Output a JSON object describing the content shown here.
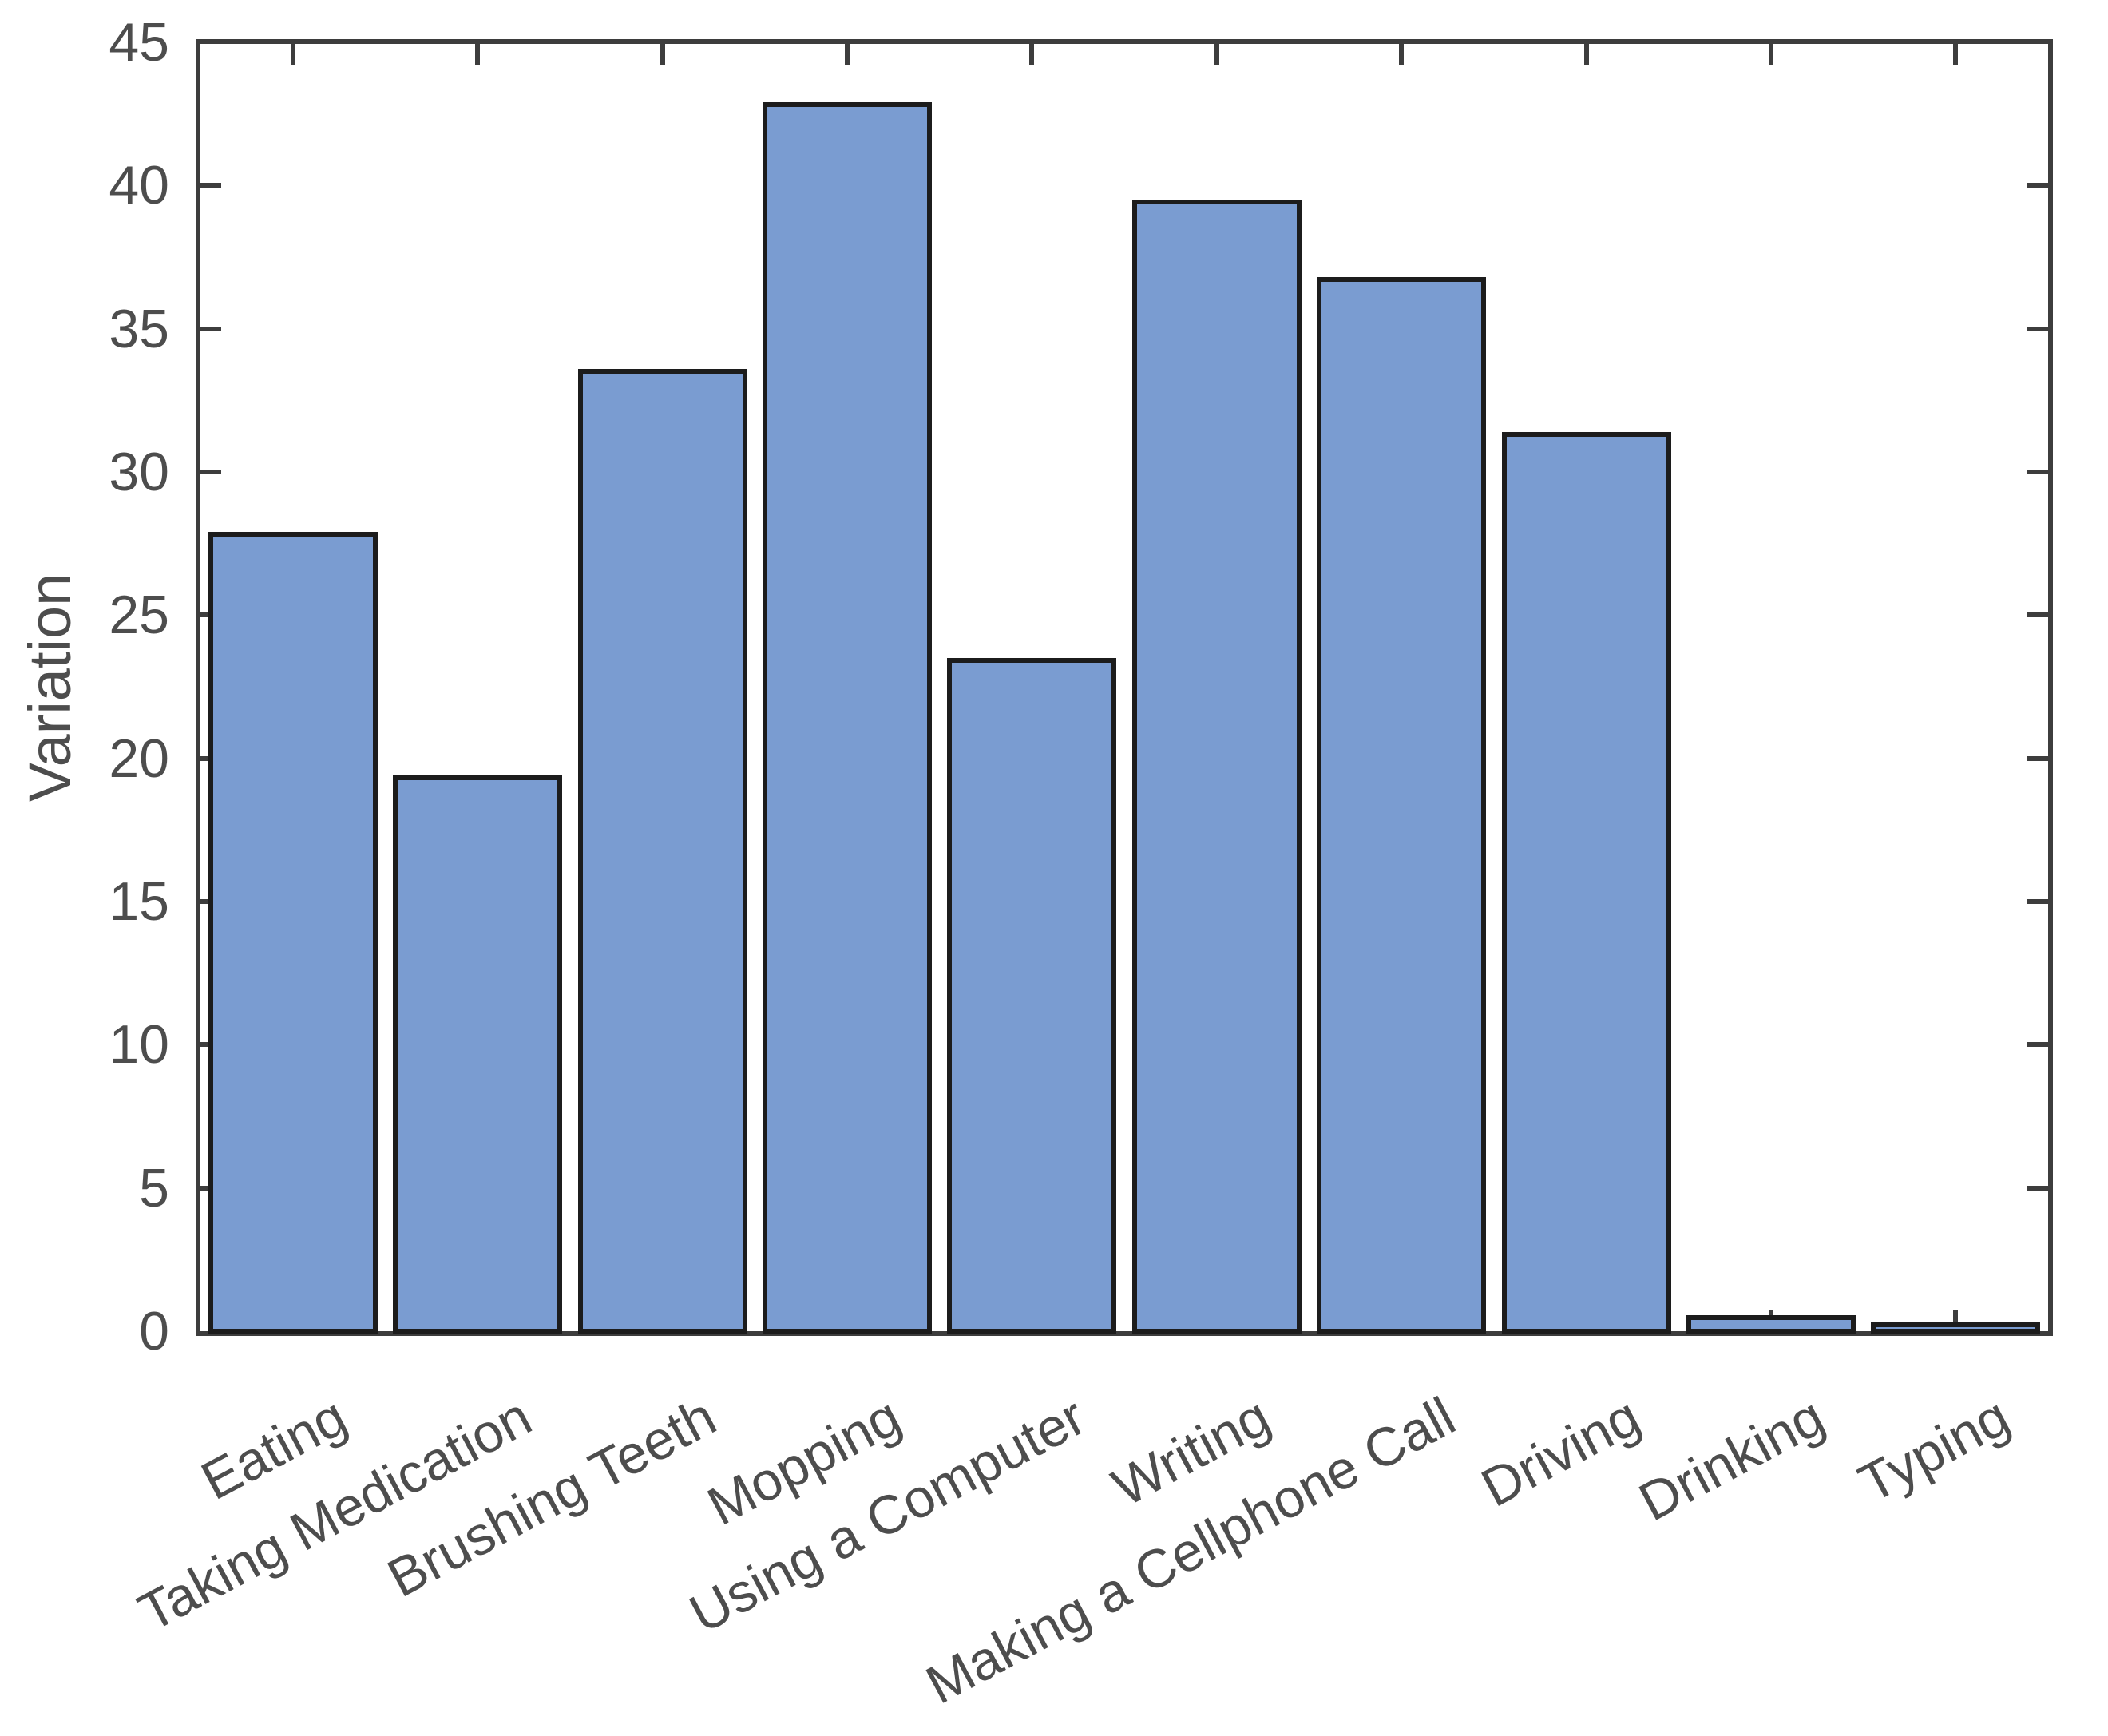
{
  "chart_data": {
    "type": "bar",
    "title": "",
    "xlabel": "",
    "ylabel": "Variation",
    "categories": [
      "Eating",
      "Taking Medication",
      "Brushing Teeth",
      "Mopping",
      "Using a Computer",
      "Writing",
      "Making a Cellphone Call",
      "Driving",
      "Drinking",
      "Typing"
    ],
    "values": [
      27.9,
      19.4,
      33.6,
      42.9,
      23.5,
      39.5,
      36.8,
      31.4,
      0.55,
      0.3
    ],
    "ylim": [
      0,
      45
    ],
    "yticks": [
      0,
      5,
      10,
      15,
      20,
      25,
      30,
      35,
      40,
      45
    ],
    "grid": false,
    "legend": "none",
    "x_label_rotation_deg": 28,
    "tick_direction": "in",
    "colors": {
      "bar_fill": "#7A9CD1",
      "bar_edge": "#1c1c1c",
      "spine": "#3d3d3d",
      "tick_mark": "#3d3d3d",
      "text": "#4d4d4d",
      "background": "#ffffff"
    }
  }
}
